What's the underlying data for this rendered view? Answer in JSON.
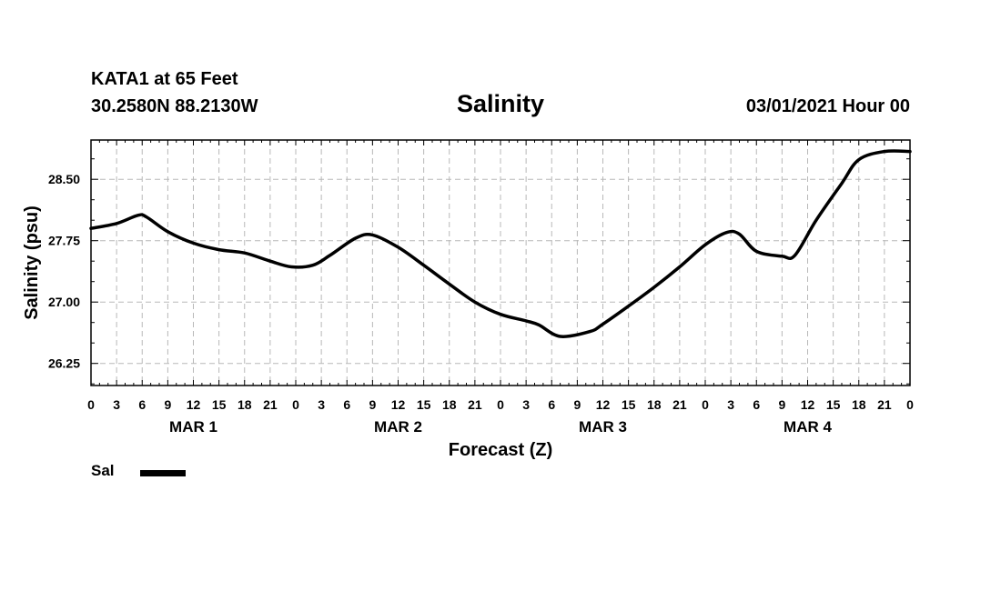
{
  "header": {
    "station": "KATA1 at 65 Feet",
    "coords": "30.2580N 88.2130W",
    "title": "Salinity",
    "datetime": "03/01/2021 Hour 00"
  },
  "chart_data": {
    "type": "line",
    "title": "Salinity",
    "xlabel": "Forecast (Z)",
    "ylabel": "Salinity (psu)",
    "x_unit": "forecast hour",
    "xlim": [
      0,
      96
    ],
    "ylim": [
      25.98,
      28.98
    ],
    "yticks": [
      26.25,
      27.0,
      27.75,
      28.5
    ],
    "ytick_labels": [
      "26.25",
      "27.00",
      "27.75",
      "28.50"
    ],
    "xticks": [
      0,
      3,
      6,
      9,
      12,
      15,
      18,
      21,
      24,
      27,
      30,
      33,
      36,
      39,
      42,
      45,
      48,
      51,
      54,
      57,
      60,
      63,
      66,
      69,
      72,
      75,
      78,
      81,
      84,
      87,
      90,
      93,
      96
    ],
    "xtick_labels": [
      "0",
      "3",
      "6",
      "9",
      "12",
      "15",
      "18",
      "21",
      "0",
      "3",
      "6",
      "9",
      "12",
      "15",
      "18",
      "21",
      "0",
      "3",
      "6",
      "9",
      "12",
      "15",
      "18",
      "21",
      "0",
      "3",
      "6",
      "9",
      "12",
      "15",
      "18",
      "21",
      "0"
    ],
    "day_labels": [
      {
        "label": "MAR 1",
        "x": 12
      },
      {
        "label": "MAR 2",
        "x": 36
      },
      {
        "label": "MAR 3",
        "x": 60
      },
      {
        "label": "MAR 4",
        "x": 84
      }
    ],
    "grid": true,
    "legend_position": "bottom-left",
    "series": [
      {
        "name": "Sal",
        "color": "#000000",
        "x": [
          0,
          3,
          5.5,
          6.5,
          9,
          12,
          15,
          18,
          21,
          23.5,
          26,
          28,
          31,
          33,
          36,
          39,
          42,
          45,
          48,
          51,
          52.5,
          55,
          58.5,
          60,
          63,
          66,
          69,
          72,
          74.5,
          76,
          78,
          81,
          82.5,
          85,
          88,
          90,
          93,
          96
        ],
        "y": [
          27.9,
          27.96,
          28.06,
          28.04,
          27.86,
          27.72,
          27.64,
          27.6,
          27.5,
          27.43,
          27.45,
          27.57,
          27.78,
          27.82,
          27.67,
          27.45,
          27.22,
          27.0,
          26.85,
          26.77,
          26.72,
          26.58,
          26.64,
          26.73,
          26.95,
          27.18,
          27.43,
          27.7,
          27.85,
          27.83,
          27.62,
          27.56,
          27.57,
          28.0,
          28.45,
          28.74,
          28.84,
          28.84
        ]
      }
    ]
  }
}
